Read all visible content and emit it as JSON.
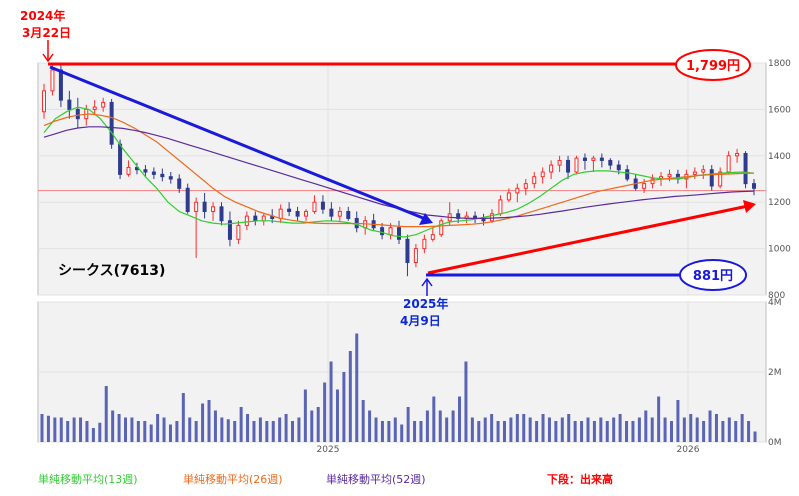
{
  "chart_data": [
    {
      "type": "candlestick",
      "panel": "price",
      "title": "シークス(7613)",
      "y_ticks": [
        800,
        1000,
        1200,
        1400,
        1600,
        1800
      ],
      "ylim": [
        800,
        1800
      ],
      "x_labels": [
        "2025",
        "2026"
      ],
      "reference_line": 1250,
      "series": [
        {
          "name": "単純移動平均(13週)",
          "color": "#33cc33",
          "values": [
            1500,
            1560,
            1590,
            1610,
            1600,
            1560,
            1500,
            1430,
            1370,
            1310,
            1260,
            1200,
            1160,
            1140,
            1120,
            1110,
            1105,
            1110,
            1115,
            1120,
            1120,
            1115,
            1110,
            1110,
            1115,
            1120,
            1118,
            1112,
            1100,
            1080,
            1070,
            1055,
            1050,
            1060,
            1080,
            1100,
            1115,
            1120,
            1125,
            1135,
            1145,
            1155,
            1170,
            1195,
            1225,
            1260,
            1295,
            1320,
            1330,
            1335,
            1335,
            1330,
            1325,
            1315,
            1305,
            1300,
            1300,
            1305,
            1315,
            1320,
            1325,
            1328,
            1330,
            1325
          ]
        },
        {
          "name": "単純移動平均(26週)",
          "color": "#ee6a1a",
          "values": [
            1530,
            1550,
            1565,
            1575,
            1580,
            1575,
            1565,
            1545,
            1520,
            1490,
            1460,
            1420,
            1380,
            1340,
            1300,
            1260,
            1225,
            1200,
            1180,
            1160,
            1145,
            1130,
            1122,
            1115,
            1110,
            1108,
            1108,
            1108,
            1108,
            1105,
            1102,
            1098,
            1095,
            1095,
            1095,
            1097,
            1100,
            1102,
            1105,
            1110,
            1118,
            1128,
            1140,
            1155,
            1170,
            1185,
            1200,
            1215,
            1230,
            1245,
            1255,
            1265,
            1275,
            1285,
            1295,
            1300,
            1305,
            1310,
            1315,
            1318,
            1320,
            1322,
            1324,
            1325
          ]
        },
        {
          "name": "単純移動平均(52週)",
          "color": "#5a2aa0",
          "values": [
            1480,
            1495,
            1510,
            1520,
            1525,
            1525,
            1522,
            1518,
            1510,
            1500,
            1488,
            1475,
            1460,
            1445,
            1430,
            1415,
            1400,
            1385,
            1370,
            1355,
            1340,
            1325,
            1310,
            1295,
            1280,
            1265,
            1250,
            1235,
            1220,
            1205,
            1190,
            1178,
            1165,
            1155,
            1145,
            1140,
            1135,
            1132,
            1130,
            1130,
            1132,
            1134,
            1138,
            1142,
            1148,
            1155,
            1162,
            1170,
            1178,
            1185,
            1192,
            1198,
            1204,
            1210,
            1215,
            1220,
            1225,
            1228,
            1232,
            1236,
            1240,
            1244,
            1246,
            1248
          ]
        }
      ],
      "candles": [
        [
          1590,
          1710,
          1560,
          1680
        ],
        [
          1680,
          1799,
          1660,
          1770
        ],
        [
          1770,
          1790,
          1610,
          1640
        ],
        [
          1640,
          1680,
          1560,
          1600
        ],
        [
          1600,
          1650,
          1520,
          1560
        ],
        [
          1560,
          1620,
          1530,
          1600
        ],
        [
          1600,
          1640,
          1580,
          1610
        ],
        [
          1610,
          1650,
          1590,
          1630
        ],
        [
          1630,
          1645,
          1430,
          1450
        ],
        [
          1450,
          1470,
          1300,
          1320
        ],
        [
          1320,
          1380,
          1310,
          1350
        ],
        [
          1350,
          1370,
          1320,
          1340
        ],
        [
          1340,
          1360,
          1310,
          1330
        ],
        [
          1330,
          1350,
          1300,
          1320
        ],
        [
          1320,
          1345,
          1290,
          1310
        ],
        [
          1310,
          1330,
          1280,
          1300
        ],
        [
          1300,
          1320,
          1240,
          1260
        ],
        [
          1260,
          1280,
          1150,
          1160
        ],
        [
          1160,
          1220,
          960,
          1200
        ],
        [
          1200,
          1240,
          1130,
          1160
        ],
        [
          1160,
          1200,
          1120,
          1180
        ],
        [
          1180,
          1200,
          1100,
          1120
        ],
        [
          1120,
          1160,
          1010,
          1040
        ],
        [
          1040,
          1120,
          1020,
          1100
        ],
        [
          1100,
          1160,
          1080,
          1140
        ],
        [
          1140,
          1160,
          1100,
          1120
        ],
        [
          1120,
          1150,
          1100,
          1140
        ],
        [
          1140,
          1170,
          1110,
          1130
        ],
        [
          1130,
          1190,
          1110,
          1170
        ],
        [
          1170,
          1200,
          1140,
          1160
        ],
        [
          1160,
          1180,
          1120,
          1140
        ],
        [
          1140,
          1170,
          1120,
          1160
        ],
        [
          1160,
          1230,
          1150,
          1200
        ],
        [
          1200,
          1230,
          1150,
          1170
        ],
        [
          1170,
          1200,
          1120,
          1140
        ],
        [
          1140,
          1180,
          1120,
          1160
        ],
        [
          1160,
          1180,
          1120,
          1130
        ],
        [
          1130,
          1160,
          1070,
          1090
        ],
        [
          1090,
          1140,
          1060,
          1120
        ],
        [
          1120,
          1150,
          1080,
          1090
        ],
        [
          1090,
          1110,
          1040,
          1060
        ],
        [
          1060,
          1110,
          1040,
          1090
        ],
        [
          1090,
          1120,
          1020,
          1040
        ],
        [
          1040,
          1060,
          881,
          940
        ],
        [
          940,
          1020,
          920,
          1000
        ],
        [
          1000,
          1060,
          980,
          1040
        ],
        [
          1040,
          1090,
          1030,
          1060
        ],
        [
          1060,
          1130,
          1050,
          1120
        ],
        [
          1120,
          1200,
          1100,
          1150
        ],
        [
          1150,
          1170,
          1110,
          1130
        ],
        [
          1130,
          1160,
          1110,
          1140
        ],
        [
          1140,
          1160,
          1110,
          1130
        ],
        [
          1130,
          1150,
          1100,
          1120
        ],
        [
          1120,
          1170,
          1110,
          1150
        ],
        [
          1150,
          1230,
          1140,
          1210
        ],
        [
          1210,
          1260,
          1200,
          1240
        ],
        [
          1240,
          1280,
          1200,
          1260
        ],
        [
          1260,
          1300,
          1230,
          1280
        ],
        [
          1280,
          1330,
          1260,
          1310
        ],
        [
          1310,
          1350,
          1280,
          1330
        ],
        [
          1330,
          1380,
          1300,
          1360
        ],
        [
          1360,
          1400,
          1330,
          1380
        ],
        [
          1380,
          1400,
          1300,
          1330
        ],
        [
          1330,
          1400,
          1320,
          1390
        ],
        [
          1390,
          1410,
          1340,
          1380
        ],
        [
          1380,
          1400,
          1330,
          1390
        ],
        [
          1390,
          1410,
          1350,
          1380
        ],
        [
          1380,
          1390,
          1340,
          1360
        ],
        [
          1360,
          1380,
          1320,
          1340
        ],
        [
          1340,
          1360,
          1290,
          1300
        ],
        [
          1300,
          1320,
          1250,
          1260
        ],
        [
          1260,
          1300,
          1240,
          1280
        ],
        [
          1280,
          1320,
          1260,
          1300
        ],
        [
          1300,
          1330,
          1270,
          1310
        ],
        [
          1310,
          1340,
          1290,
          1320
        ],
        [
          1320,
          1340,
          1280,
          1300
        ],
        [
          1300,
          1340,
          1260,
          1320
        ],
        [
          1320,
          1350,
          1300,
          1330
        ],
        [
          1330,
          1360,
          1300,
          1340
        ],
        [
          1340,
          1360,
          1250,
          1270
        ],
        [
          1270,
          1350,
          1260,
          1330
        ],
        [
          1330,
          1420,
          1320,
          1400
        ],
        [
          1400,
          1430,
          1370,
          1410
        ],
        [
          1410,
          1420,
          1260,
          1280
        ],
        [
          1280,
          1300,
          1230,
          1260
        ]
      ]
    },
    {
      "type": "bar",
      "panel": "volume",
      "y_ticks": [
        "0M",
        "2M",
        "4M"
      ],
      "ylim": [
        0,
        4
      ],
      "values": [
        0.8,
        0.75,
        0.7,
        0.7,
        0.6,
        0.7,
        0.7,
        0.6,
        0.4,
        0.55,
        1.6,
        0.9,
        0.8,
        0.7,
        0.7,
        0.6,
        0.6,
        0.5,
        0.8,
        0.7,
        0.5,
        0.6,
        1.4,
        0.7,
        0.6,
        1.1,
        1.2,
        0.9,
        0.7,
        0.65,
        0.6,
        1.0,
        0.8,
        0.6,
        0.7,
        0.6,
        0.6,
        0.7,
        0.8,
        0.6,
        0.7,
        1.5,
        0.9,
        1.0,
        1.7,
        2.3,
        1.5,
        2.0,
        2.6,
        3.1,
        1.2,
        0.9,
        0.7,
        0.6,
        0.6,
        0.7,
        0.5,
        1.0,
        0.6,
        0.6,
        0.9,
        1.3,
        0.9,
        0.7,
        0.9,
        1.3,
        2.3,
        0.7,
        0.6,
        0.7,
        0.8,
        0.6,
        0.6,
        0.7,
        0.8,
        0.8,
        0.7,
        0.6,
        0.8,
        0.7,
        0.6,
        0.7,
        0.8,
        0.6,
        0.6,
        0.7,
        0.6,
        0.7,
        0.6,
        0.7,
        0.8,
        0.6,
        0.6,
        0.7,
        0.9,
        0.7,
        1.3,
        0.7,
        0.6,
        1.2,
        0.7,
        0.8,
        0.7,
        0.6,
        0.9,
        0.8,
        0.6,
        0.7,
        0.6,
        0.8,
        0.6,
        0.3
      ],
      "ylabel": ""
    }
  ],
  "annotations": {
    "top_date": [
      "2024年",
      "3月22日"
    ],
    "bottom_date": [
      "2025年",
      "4月9日"
    ],
    "high_price": "1,799円",
    "low_price": "881円",
    "stock_name": "シークス(7613)"
  },
  "legend": {
    "ma13": "単純移動平均(13週)",
    "ma26": "単純移動平均(26週)",
    "ma52": "単純移動平均(52週)",
    "volume_note": "下段：出来高"
  },
  "colors": {
    "up_candle": "#ff2a2a",
    "down_candle": "#2e3b8f",
    "volume_bar": "#5a64b4",
    "annotation_red": "#ff0000",
    "annotation_blue": "#0a28d6"
  }
}
